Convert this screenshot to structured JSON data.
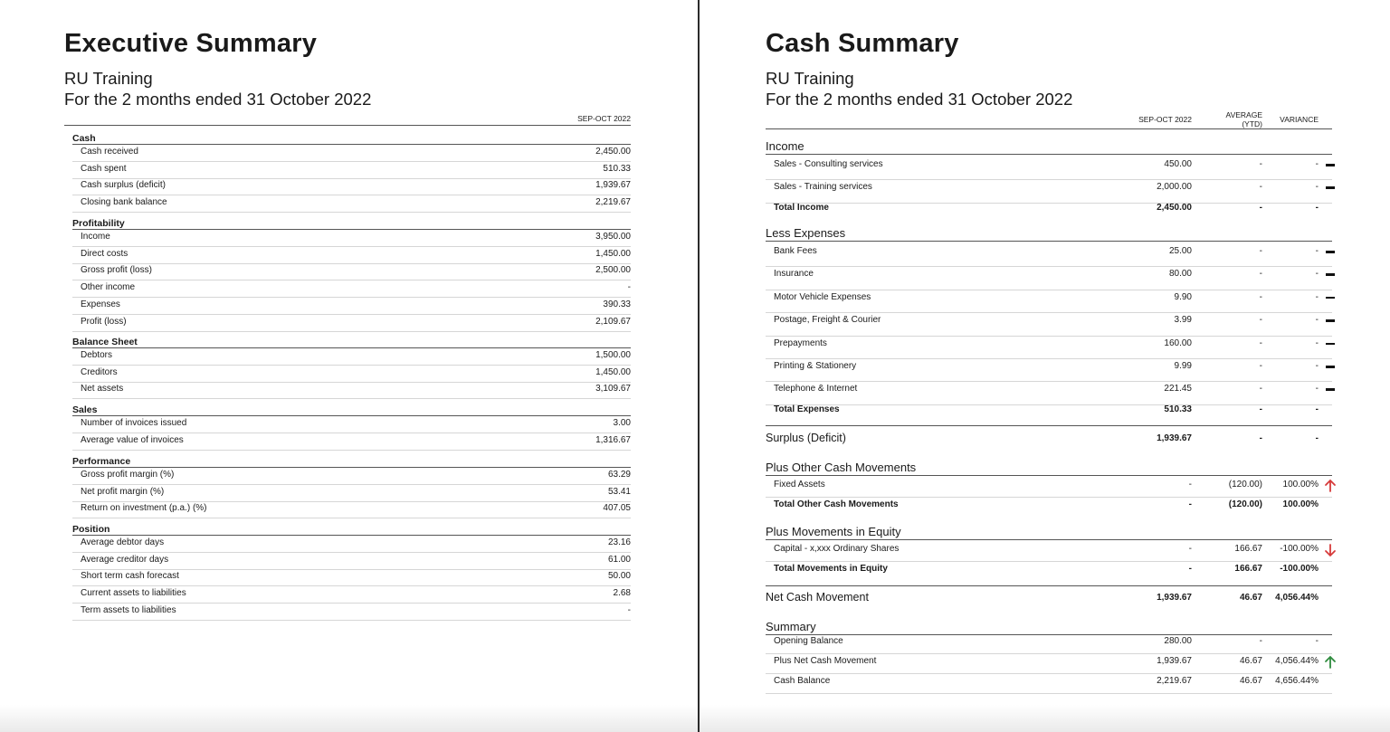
{
  "exec": {
    "title": "Executive Summary",
    "org": "RU Training",
    "period": "For the 2 months ended 31 October 2022",
    "col": "SEP-OCT 2022",
    "sections": [
      {
        "name": "Cash",
        "rows": [
          {
            "label": "Cash received",
            "value": "2,450.00"
          },
          {
            "label": "Cash spent",
            "value": "510.33"
          },
          {
            "label": "Cash surplus (deficit)",
            "value": "1,939.67"
          },
          {
            "label": "Closing bank balance",
            "value": "2,219.67"
          }
        ]
      },
      {
        "name": "Profitability",
        "rows": [
          {
            "label": "Income",
            "value": "3,950.00"
          },
          {
            "label": "Direct costs",
            "value": "1,450.00"
          },
          {
            "label": "Gross profit (loss)",
            "value": "2,500.00"
          },
          {
            "label": "Other income",
            "value": "-"
          },
          {
            "label": "Expenses",
            "value": "390.33"
          },
          {
            "label": "Profit (loss)",
            "value": "2,109.67"
          }
        ]
      },
      {
        "name": "Balance Sheet",
        "rows": [
          {
            "label": "Debtors",
            "value": "1,500.00"
          },
          {
            "label": "Creditors",
            "value": "1,450.00"
          },
          {
            "label": "Net assets",
            "value": "3,109.67"
          }
        ]
      },
      {
        "name": "Sales",
        "rows": [
          {
            "label": "Number of invoices issued",
            "value": "3.00"
          },
          {
            "label": "Average value of invoices",
            "value": "1,316.67"
          }
        ]
      },
      {
        "name": "Performance",
        "rows": [
          {
            "label": "Gross profit margin (%)",
            "value": "63.29"
          },
          {
            "label": "Net profit margin (%)",
            "value": "53.41"
          },
          {
            "label": "Return on investment (p.a.) (%)",
            "value": "407.05"
          }
        ]
      },
      {
        "name": "Position",
        "rows": [
          {
            "label": "Average debtor days",
            "value": "23.16"
          },
          {
            "label": "Average creditor days",
            "value": "61.00"
          },
          {
            "label": "Short term cash forecast",
            "value": "50.00"
          },
          {
            "label": "Current assets to liabilities",
            "value": "2.68"
          },
          {
            "label": "Term assets to liabilities",
            "value": "-"
          }
        ]
      }
    ]
  },
  "cash": {
    "title": "Cash Summary",
    "org": "RU Training",
    "period": "For the 2 months ended 31 October 2022",
    "col1": "SEP-OCT 2022",
    "col2_line1": "AVERAGE",
    "col2_line2": "(YTD)",
    "col3": "VARIANCE",
    "income": {
      "heading": "Income",
      "rows": [
        {
          "label": "Sales - Consulting services",
          "v1": "450.00",
          "v2": "-",
          "v3": "-",
          "ind": "dash"
        },
        {
          "label": "Sales - Training services",
          "v1": "2,000.00",
          "v2": "-",
          "v3": "-",
          "ind": "dash"
        }
      ],
      "total": {
        "label": "Total Income",
        "v1": "2,450.00",
        "v2": "-",
        "v3": "-"
      }
    },
    "expenses": {
      "heading": "Less Expenses",
      "rows": [
        {
          "label": "Bank Fees",
          "v1": "25.00",
          "v2": "-",
          "v3": "-",
          "ind": "dash"
        },
        {
          "label": "Insurance",
          "v1": "80.00",
          "v2": "-",
          "v3": "-",
          "ind": "dash"
        },
        {
          "label": "Motor Vehicle Expenses",
          "v1": "9.90",
          "v2": "-",
          "v3": "-",
          "ind": "dash"
        },
        {
          "label": "Postage, Freight & Courier",
          "v1": "3.99",
          "v2": "-",
          "v3": "-",
          "ind": "dash"
        },
        {
          "label": "Prepayments",
          "v1": "160.00",
          "v2": "-",
          "v3": "-",
          "ind": "dash"
        },
        {
          "label": "Printing & Stationery",
          "v1": "9.99",
          "v2": "-",
          "v3": "-",
          "ind": "dash"
        },
        {
          "label": "Telephone & Internet",
          "v1": "221.45",
          "v2": "-",
          "v3": "-",
          "ind": "dash"
        }
      ],
      "total": {
        "label": "Total Expenses",
        "v1": "510.33",
        "v2": "-",
        "v3": "-"
      }
    },
    "surplus": {
      "label": "Surplus (Deficit)",
      "v1": "1,939.67",
      "v2": "-",
      "v3": "-"
    },
    "other": {
      "heading": "Plus Other Cash Movements",
      "rows": [
        {
          "label": "Fixed Assets",
          "v1": "-",
          "v2": "(120.00)",
          "v3": "100.00%",
          "ind": "up-red"
        }
      ],
      "total": {
        "label": "Total Other Cash Movements",
        "v1": "-",
        "v2": "(120.00)",
        "v3": "100.00%"
      }
    },
    "equity": {
      "heading": "Plus Movements in Equity",
      "rows": [
        {
          "label": "Capital - x,xxx Ordinary Shares",
          "v1": "-",
          "v2": "166.67",
          "v3": "-100.00%",
          "ind": "down-red"
        }
      ],
      "total": {
        "label": "Total Movements in Equity",
        "v1": "-",
        "v2": "166.67",
        "v3": "-100.00%"
      }
    },
    "net": {
      "label": "Net Cash Movement",
      "v1": "1,939.67",
      "v2": "46.67",
      "v3": "4,056.44%"
    },
    "summary": {
      "heading": "Summary",
      "rows": [
        {
          "label": "Opening Balance",
          "v1": "280.00",
          "v2": "-",
          "v3": "-",
          "ind": ""
        },
        {
          "label": "Plus Net Cash Movement",
          "v1": "1,939.67",
          "v2": "46.67",
          "v3": "4,056.44%",
          "ind": "up-green"
        },
        {
          "label": "Cash Balance",
          "v1": "2,219.67",
          "v2": "46.67",
          "v3": "4,656.44%",
          "ind": ""
        }
      ]
    }
  },
  "colors": {
    "up_red": "#d63a3a",
    "down_red": "#d63a3a",
    "up_green": "#2e8b3e",
    "rule": "#555555"
  },
  "icons": {
    "dash": "dash-indicator-icon",
    "up-red": "arrow-up-icon",
    "down-red": "arrow-down-icon",
    "up-green": "arrow-up-icon"
  }
}
